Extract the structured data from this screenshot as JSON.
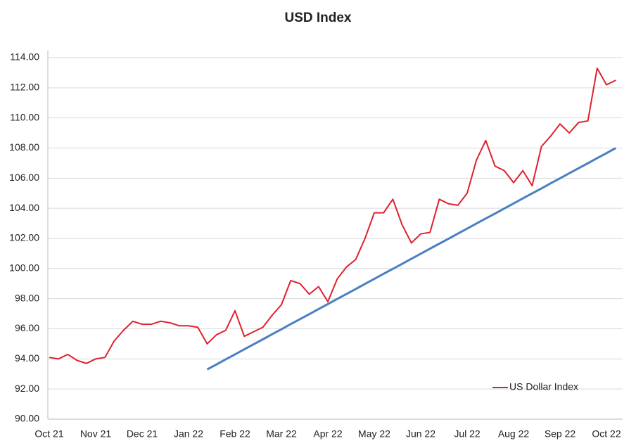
{
  "chart_data": {
    "type": "line",
    "title": "USD Index",
    "categories": [
      "Oct 21",
      null,
      null,
      null,
      null,
      "Nov 21",
      null,
      null,
      null,
      null,
      "Dec 21",
      null,
      null,
      null,
      null,
      "Jan 22",
      null,
      null,
      null,
      null,
      "Feb 22",
      null,
      null,
      null,
      null,
      "Mar 22",
      null,
      null,
      null,
      null,
      "Apr 22",
      null,
      null,
      null,
      null,
      "May 22",
      null,
      null,
      null,
      null,
      "Jun 22",
      null,
      null,
      null,
      null,
      "Jul 22",
      null,
      null,
      null,
      null,
      "Aug 22",
      null,
      null,
      null,
      null,
      "Sep 22",
      null,
      null,
      null,
      null,
      "Oct 22",
      null
    ],
    "series": [
      {
        "name": "US Dollar Index",
        "color": "#e0202e",
        "values": [
          94.1,
          94.0,
          94.3,
          93.9,
          93.7,
          94.0,
          94.1,
          95.2,
          95.9,
          96.5,
          96.3,
          96.3,
          96.5,
          96.4,
          96.2,
          96.2,
          96.1,
          95.0,
          95.6,
          95.9,
          97.2,
          95.5,
          95.8,
          96.1,
          96.9,
          97.6,
          99.2,
          99.0,
          98.3,
          98.8,
          97.8,
          99.3,
          100.1,
          100.6,
          102.0,
          103.7,
          103.7,
          104.6,
          102.9,
          101.7,
          102.3,
          102.4,
          104.6,
          104.3,
          104.2,
          105.0,
          107.2,
          108.5,
          106.8,
          106.5,
          105.7,
          106.5,
          105.5,
          108.1,
          108.8,
          109.6,
          109.0,
          109.7,
          109.8,
          113.3,
          112.2,
          112.5
        ]
      },
      {
        "color": "#4a7fc1",
        "values": [
          null,
          null,
          null,
          null,
          null,
          null,
          null,
          null,
          null,
          null,
          null,
          null,
          null,
          null,
          null,
          null,
          null,
          93.3,
          93.63,
          93.97,
          94.3,
          94.64,
          94.97,
          95.3,
          95.64,
          95.97,
          96.31,
          96.64,
          96.97,
          97.31,
          97.64,
          97.98,
          98.31,
          98.64,
          98.98,
          99.31,
          99.65,
          99.98,
          100.31,
          100.65,
          100.98,
          101.32,
          101.65,
          101.98,
          102.32,
          102.65,
          102.99,
          103.32,
          103.65,
          103.99,
          104.32,
          104.66,
          104.99,
          105.32,
          105.66,
          105.99,
          106.33,
          106.66,
          106.99,
          107.33,
          107.66,
          108.0
        ]
      }
    ],
    "ylim": [
      90,
      114
    ],
    "yticks": [
      {
        "value": 90,
        "label": "90.00"
      },
      {
        "value": 92,
        "label": "92.00"
      },
      {
        "value": 94,
        "label": "94.00"
      },
      {
        "value": 96,
        "label": "96.00"
      },
      {
        "value": 98,
        "label": "98.00"
      },
      {
        "value": 100,
        "label": "100.00"
      },
      {
        "value": 102,
        "label": "102.00"
      },
      {
        "value": 104,
        "label": "104.00"
      },
      {
        "value": 106,
        "label": "106.00"
      },
      {
        "value": 108,
        "label": "108.00"
      },
      {
        "value": 110,
        "label": "110.00"
      },
      {
        "value": 112,
        "label": "112.00"
      },
      {
        "value": 114,
        "label": "114.00"
      }
    ],
    "grid": true,
    "legend": "lower right"
  }
}
